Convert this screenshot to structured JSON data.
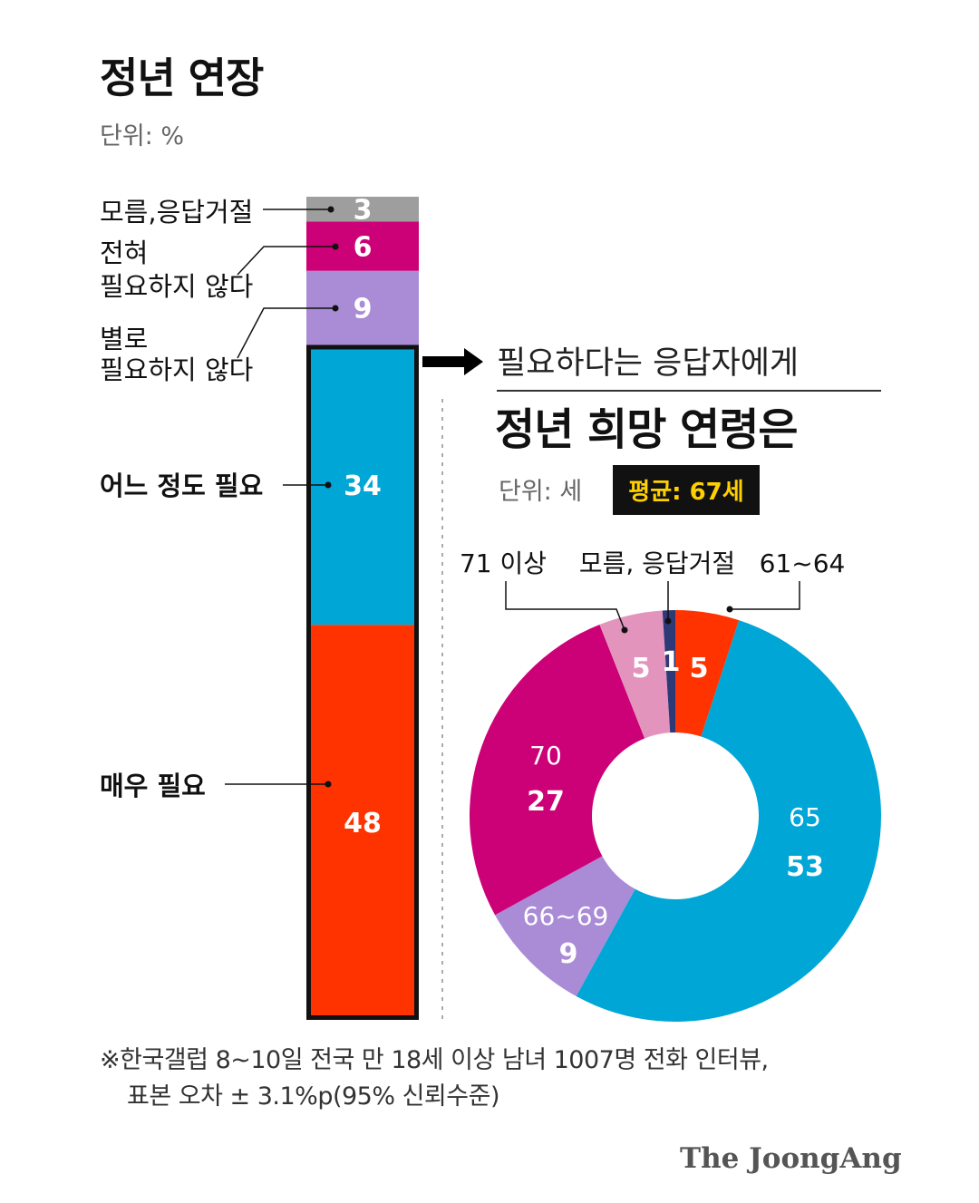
{
  "left": {
    "title": "정년 연장",
    "unit": "단위: %"
  },
  "right": {
    "intro": "필요하다는 응답자에게",
    "title": "정년 희망 연령은",
    "unit": "단위: 세",
    "average_badge": "평균: 67세"
  },
  "chart_data": [
    {
      "type": "bar",
      "stacked": true,
      "title": "정년 연장",
      "unit": "%",
      "categories": [
        "매우 필요",
        "어느 정도 필요",
        "별로 필요하지 않다",
        "전혀 필요하지 않다",
        "모름,응답거절"
      ],
      "label_lines": [
        [
          "매우 필요"
        ],
        [
          "어느 정도 필요"
        ],
        [
          "별로",
          "필요하지 않다"
        ],
        [
          "전혀",
          "필요하지 않다"
        ],
        [
          "모름,응답거절"
        ]
      ],
      "values": [
        48,
        34,
        9,
        6,
        3
      ],
      "value_labels": [
        "48",
        "34",
        "9",
        "6",
        "3"
      ],
      "colors": [
        "#ff3300",
        "#00a6d6",
        "#a98bd6",
        "#cc0077",
        "#9e9e9e"
      ],
      "label_bold": [
        true,
        true,
        false,
        false,
        false
      ],
      "highlighted": [
        "매우 필요",
        "어느 정도 필요"
      ]
    },
    {
      "type": "pie",
      "donut": true,
      "title": "정년 희망 연령은",
      "unit": "세",
      "categories": [
        "61~64",
        "65",
        "66~69",
        "70",
        "71 이상",
        "모름, 응답거절"
      ],
      "values": [
        5,
        53,
        9,
        27,
        5,
        1
      ],
      "value_labels": [
        "5",
        "53",
        "9",
        "27",
        "5",
        "1"
      ],
      "colors": [
        "#ff3300",
        "#00a6d6",
        "#a98bd6",
        "#cc0077",
        "#e394bd",
        "#2e3a78"
      ],
      "average": "평균: 67세"
    }
  ],
  "footnote": {
    "line1": "※한국갤럽 8~10일 전국 만 18세 이상 남녀 1007명 전화 인터뷰,",
    "line2": "표본 오차 ± 3.1%p(95% 신뢰수준)"
  },
  "source": "The JoongAng"
}
